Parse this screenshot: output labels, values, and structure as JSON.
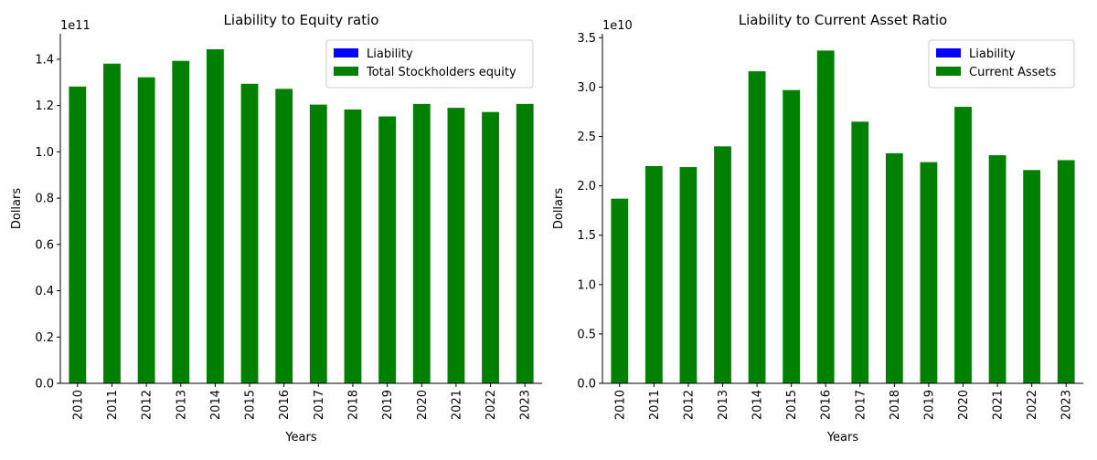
{
  "chart_data": [
    {
      "type": "bar",
      "stacked": true,
      "title": "Liability to Equity ratio",
      "xlabel": "Years",
      "ylabel": "Dollars",
      "scale_label": "1e11",
      "categories": [
        "2010",
        "2011",
        "2012",
        "2013",
        "2014",
        "2015",
        "2016",
        "2017",
        "2018",
        "2019",
        "2020",
        "2021",
        "2022",
        "2023"
      ],
      "series": [
        {
          "name": "Liability",
          "color": "#0000ff",
          "values": [
            0,
            0,
            0,
            0,
            0,
            0,
            0,
            0,
            0,
            0,
            0,
            0,
            0,
            0
          ]
        },
        {
          "name": "Total Stockholders equity",
          "color": "#008000",
          "values": [
            1.282,
            1.381,
            1.322,
            1.393,
            1.443,
            1.294,
            1.272,
            1.204,
            1.183,
            1.153,
            1.207,
            1.19,
            1.172,
            1.207
          ]
        }
      ],
      "ylim": [
        0,
        1.51
      ],
      "yticks": [
        "0.0",
        "0.2",
        "0.4",
        "0.6",
        "0.8",
        "1.0",
        "1.2",
        "1.4"
      ],
      "legend": "top-right",
      "grid": false
    },
    {
      "type": "bar",
      "stacked": true,
      "title": "Liability to Current Asset Ratio",
      "xlabel": "Years",
      "ylabel": "Dollars",
      "scale_label": "1e10",
      "categories": [
        "2010",
        "2011",
        "2012",
        "2013",
        "2014",
        "2015",
        "2016",
        "2017",
        "2018",
        "2019",
        "2020",
        "2021",
        "2022",
        "2023"
      ],
      "series": [
        {
          "name": "Liability",
          "color": "#0000ff",
          "values": [
            0,
            0,
            0,
            0,
            0,
            0,
            0,
            0,
            0,
            0,
            0,
            0,
            0,
            0
          ]
        },
        {
          "name": "Current Assets",
          "color": "#008000",
          "values": [
            1.87,
            2.2,
            2.19,
            2.4,
            3.16,
            2.97,
            3.37,
            2.65,
            2.33,
            2.24,
            2.8,
            2.31,
            2.16,
            2.26
          ]
        }
      ],
      "ylim": [
        0,
        3.54
      ],
      "yticks": [
        "0.0",
        "0.5",
        "1.0",
        "1.5",
        "2.0",
        "2.5",
        "3.0",
        "3.5"
      ],
      "legend": "top-right",
      "grid": false
    }
  ]
}
